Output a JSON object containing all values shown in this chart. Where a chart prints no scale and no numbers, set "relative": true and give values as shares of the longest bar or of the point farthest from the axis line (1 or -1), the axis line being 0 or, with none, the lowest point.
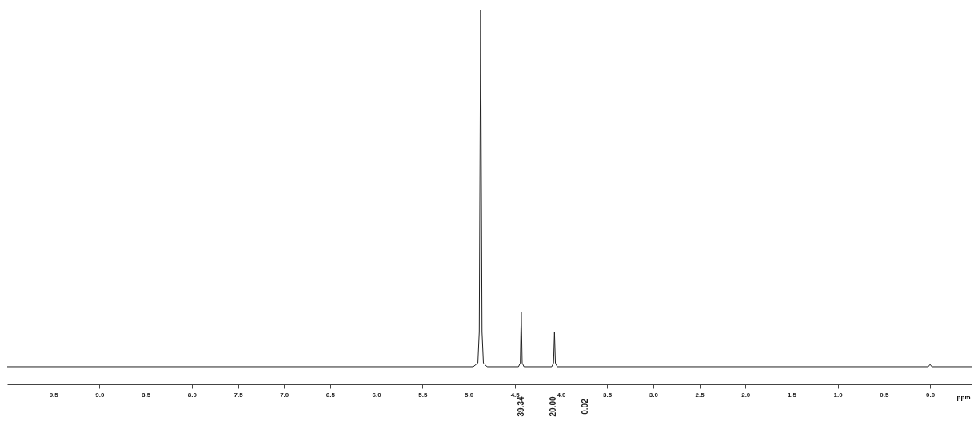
{
  "chart_data": {
    "type": "line",
    "relative": true,
    "xlabel": "ppm",
    "x": [
      10.0,
      4.95,
      4.9,
      4.885,
      4.87,
      4.855,
      4.84,
      4.8,
      4.46,
      4.44,
      4.43,
      4.42,
      4.4,
      4.1,
      4.08,
      4.07,
      4.06,
      4.04,
      0.02,
      0.0,
      -0.02,
      -0.45
    ],
    "series": [
      {
        "color": "#222222",
        "values": [
          0.047,
          0.047,
          0.057,
          0.14,
          1,
          0.14,
          0.057,
          0.047,
          0.047,
          0.057,
          0.194,
          0.057,
          0.047,
          0.047,
          0.057,
          0.139,
          0.057,
          0.047,
          0.047,
          0.053,
          0.047,
          0.047
        ]
      }
    ],
    "xlim": [
      10.0,
      -0.45
    ],
    "xticks": [
      {
        "value": 9.5,
        "label": "9.5"
      },
      {
        "value": 9,
        "label": "9.0"
      },
      {
        "value": 8.5,
        "label": "8.5"
      },
      {
        "value": 8,
        "label": "8.0"
      },
      {
        "value": 7.5,
        "label": "7.5"
      },
      {
        "value": 7,
        "label": "7.0"
      },
      {
        "value": 6.5,
        "label": "6.5"
      },
      {
        "value": 6,
        "label": "6.0"
      },
      {
        "value": 5.5,
        "label": "5.5"
      },
      {
        "value": 5,
        "label": "5.0"
      },
      {
        "value": 4.5,
        "label": "4.5"
      },
      {
        "value": 4,
        "label": "4.0"
      },
      {
        "value": 3.5,
        "label": "3.5"
      },
      {
        "value": 3,
        "label": "3.0"
      },
      {
        "value": 2.5,
        "label": "2.5"
      },
      {
        "value": 2,
        "label": "2.0"
      },
      {
        "value": 1.5,
        "label": "1.5"
      },
      {
        "value": 1,
        "label": "1.0"
      },
      {
        "value": 0.5,
        "label": "0.5"
      },
      {
        "value": 0,
        "label": "0.0"
      }
    ],
    "annotations": [
      "39.34",
      "20.00",
      "0.02"
    ]
  }
}
